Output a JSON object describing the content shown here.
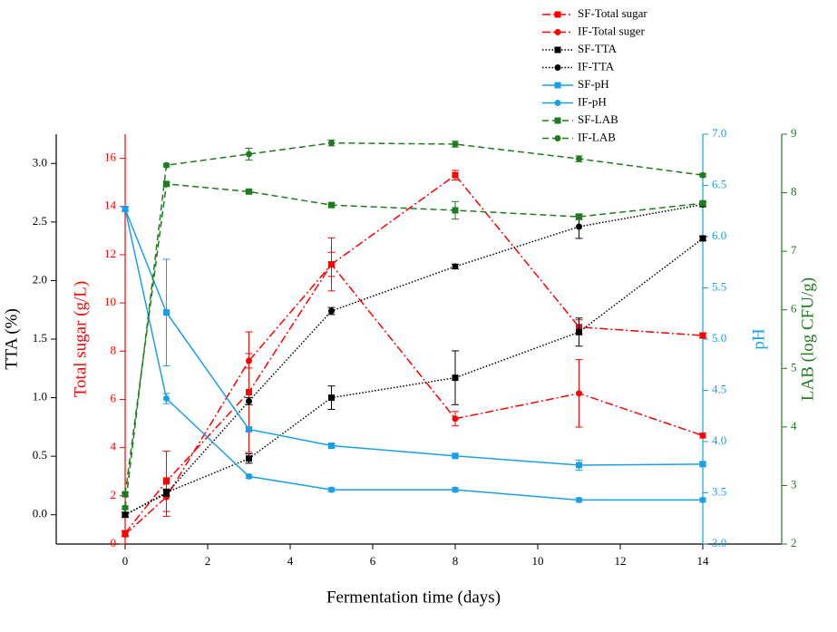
{
  "chart_data": {
    "type": "line",
    "x_label": "Fermentation time (days)",
    "x": [
      0,
      1,
      3,
      5,
      8,
      11,
      14
    ],
    "xlim": [
      0,
      14
    ],
    "xticks": [
      0,
      2,
      4,
      6,
      8,
      10,
      12,
      14
    ],
    "y_axes": [
      {
        "label": "TTA (%)",
        "color": "#000000",
        "lim": [
          -0.25,
          3.25
        ],
        "ticks": [
          {
            "value": 0,
            "label": "0.0"
          },
          0.5,
          {
            "value": 1,
            "label": "1.0"
          },
          1.5,
          {
            "value": 2,
            "label": "2.0"
          },
          2.5,
          {
            "value": 3,
            "label": "3.0"
          }
        ]
      },
      {
        "label": "Total sugar (g/L)",
        "color": "#ff0000",
        "lim": [
          0,
          17
        ],
        "ticks": [
          0,
          2,
          4,
          6,
          8,
          10,
          12,
          14,
          16
        ]
      },
      {
        "label": "pH",
        "color": "#1a9fe6",
        "lim": [
          3,
          7
        ],
        "ticks": [
          {
            "value": 3,
            "label": "3.0"
          },
          3.5,
          {
            "value": 4,
            "label": "4.0"
          },
          4.5,
          {
            "value": 5,
            "label": "5.0"
          },
          5.5,
          {
            "value": 6,
            "label": "6.0"
          },
          6.5,
          {
            "value": 7,
            "label": "7.0"
          }
        ]
      },
      {
        "label": "LAB (log CFU/g)",
        "color": "#1e7b1e",
        "lim": [
          2,
          9
        ],
        "ticks": [
          2,
          3,
          4,
          5,
          6,
          7,
          8,
          9
        ]
      }
    ],
    "series": [
      {
        "name": "SF-Total sugar",
        "color": "#ff0000",
        "axis": 1,
        "marker": "square",
        "line_style": "dashdot",
        "values": [
          0.45,
          2.6,
          6.3,
          11.6,
          15.3,
          9.0,
          8.65
        ],
        "errors": [
          0.1,
          1.25,
          2.5,
          1.1,
          0.2,
          0.3,
          0.1
        ]
      },
      {
        "name": "IF-Total suger",
        "color": "#ff0000",
        "axis": 1,
        "marker": "circle",
        "line_style": "dashdot",
        "values": [
          0.4,
          1.95,
          7.6,
          11.6,
          5.2,
          6.25,
          4.5
        ],
        "errors": [
          0.1,
          0.8,
          0.3,
          0.5,
          0.3,
          1.4,
          0.1
        ]
      },
      {
        "name": "SF-TTA",
        "color": "#000000",
        "axis": 0,
        "marker": "square",
        "line_style": "dotted",
        "values": [
          0.0,
          0.19,
          0.48,
          1.0,
          1.17,
          1.56,
          2.36
        ],
        "errors": [
          0.02,
          0.03,
          0.04,
          0.1,
          0.23,
          0.12,
          0.02
        ]
      },
      {
        "name": "IF-TTA",
        "color": "#000000",
        "axis": 0,
        "marker": "circle",
        "line_style": "dotted",
        "values": [
          0.0,
          0.18,
          0.97,
          1.74,
          2.12,
          2.46,
          2.65
        ],
        "errors": [
          0.02,
          0.02,
          0.03,
          0.03,
          0.02,
          0.1,
          0.02
        ]
      },
      {
        "name": "SF-pH",
        "color": "#1a9fe6",
        "axis": 2,
        "marker": "square",
        "line_style": "solid",
        "values": [
          6.27,
          5.26,
          4.12,
          3.96,
          3.86,
          3.77,
          3.78
        ],
        "errors": [
          0.02,
          0.52,
          0.02,
          0.02,
          0.02,
          0.05,
          0.02
        ]
      },
      {
        "name": "IF-pH",
        "color": "#1a9fe6",
        "axis": 2,
        "marker": "circle",
        "line_style": "solid",
        "values": [
          6.27,
          4.42,
          3.66,
          3.53,
          3.53,
          3.43,
          3.43
        ],
        "errors": [
          0.02,
          0.05,
          0.02,
          0.02,
          0.02,
          0.02,
          0.02
        ]
      },
      {
        "name": "SF-LAB",
        "color": "#1e7b1e",
        "axis": 3,
        "marker": "square",
        "line_style": "dashed",
        "values": [
          2.85,
          8.15,
          8.02,
          7.79,
          7.7,
          7.59,
          7.82
        ],
        "errors": [
          0.03,
          0.03,
          0.03,
          0.03,
          0.15,
          0.05,
          0.03
        ]
      },
      {
        "name": "IF-LAB",
        "color": "#1e7b1e",
        "axis": 3,
        "marker": "circle",
        "line_style": "dashed",
        "values": [
          2.62,
          8.47,
          8.66,
          8.85,
          8.83,
          8.58,
          8.3
        ],
        "errors": [
          0.03,
          0.03,
          0.1,
          0.05,
          0.05,
          0.05,
          0.03
        ]
      }
    ]
  }
}
